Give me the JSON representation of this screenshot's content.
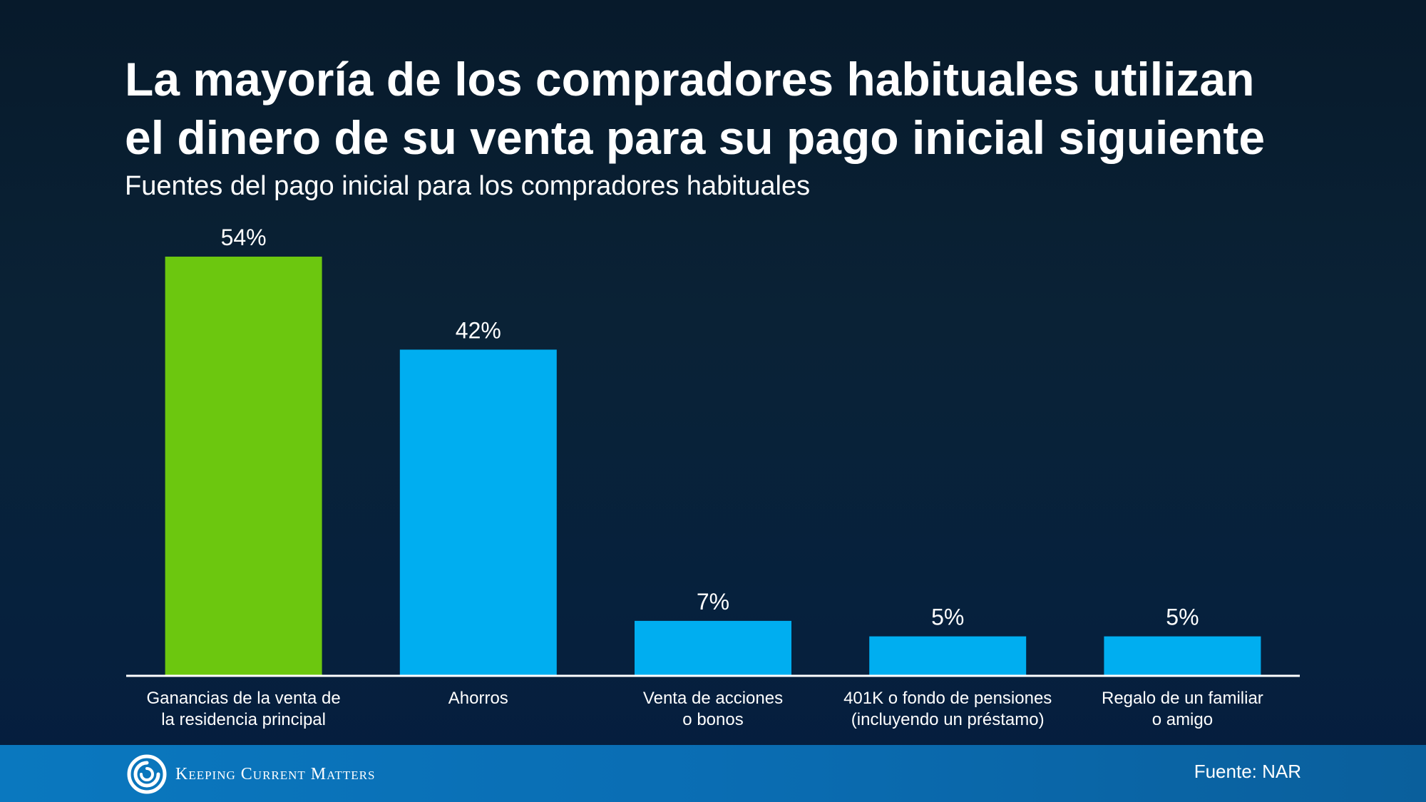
{
  "title_lines": [
    "La mayoría de los compradores habituales utilizan",
    "el dinero de su venta para su pago inicial siguiente"
  ],
  "subtitle": "Fuentes del pago inicial para los compradores habituales",
  "colors": {
    "highlight_bar": "#6cc70f",
    "bar": "#00aef0",
    "axis": "#ffffff"
  },
  "chart_data": {
    "type": "bar",
    "categories": [
      [
        "Ganancias de la venta de",
        "la residencia principal"
      ],
      [
        "Ahorros"
      ],
      [
        "Venta de acciones",
        "o bonos"
      ],
      [
        "401K o fondo de pensiones",
        "(incluyendo un préstamo)"
      ],
      [
        "Regalo de un familiar",
        "o amigo"
      ]
    ],
    "values": [
      54,
      42,
      7,
      5,
      5
    ],
    "value_labels": [
      "54%",
      "42%",
      "7%",
      "5%",
      "5%"
    ],
    "highlight_index": 0,
    "ylim": [
      0,
      54
    ],
    "grid": false,
    "xlabel": "",
    "ylabel": ""
  },
  "footer": {
    "brand_words": [
      "Keeping",
      "Current",
      "Matters"
    ],
    "source": "Fuente: NAR"
  }
}
